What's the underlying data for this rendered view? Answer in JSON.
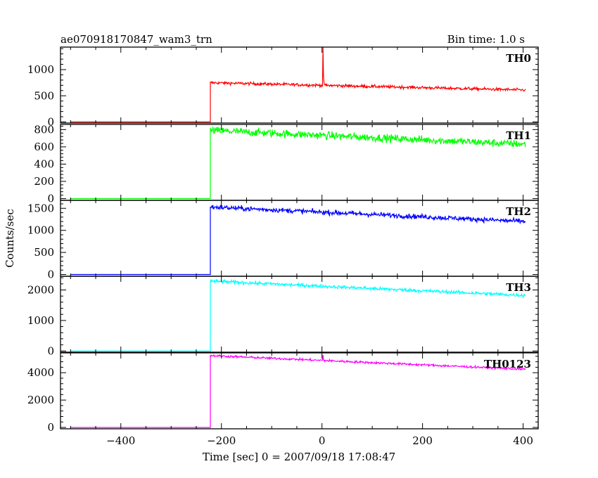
{
  "header": {
    "title": "ae070918170847_wam3_trn",
    "bin_time": "Bin time: 1.0 s"
  },
  "chart_data": {
    "type": "line",
    "xlabel": "Time [sec] 0 = 2007/09/18 17:08:47",
    "ylabel": "Counts/sec",
    "xlim": [
      -520,
      430
    ],
    "xticks": [
      -400,
      -200,
      0,
      200,
      400
    ],
    "x_data_range": [
      -500,
      405
    ],
    "onset": -222,
    "series": [
      {
        "name": "TH0",
        "color": "#ff0000",
        "ylim": [
          -20,
          1430
        ],
        "yticks": [
          0,
          500,
          1000
        ],
        "baseline": 0,
        "level_start": 750,
        "level_end": 610,
        "noise": 28,
        "spike": {
          "x": 2,
          "y": 1430
        }
      },
      {
        "name": "TH1",
        "color": "#00ff00",
        "ylim": [
          -20,
          860
        ],
        "yticks": [
          0,
          200,
          400,
          600,
          800
        ],
        "baseline": 0,
        "level_start": 790,
        "level_end": 630,
        "noise": 45
      },
      {
        "name": "TH2",
        "color": "#0000ff",
        "ylim": [
          -40,
          1680
        ],
        "yticks": [
          0,
          500,
          1000,
          1500
        ],
        "baseline": 0,
        "level_start": 1530,
        "level_end": 1200,
        "noise": 55
      },
      {
        "name": "TH3",
        "color": "#00ffff",
        "ylim": [
          -40,
          2450
        ],
        "yticks": [
          0,
          1000,
          2000
        ],
        "baseline": 0,
        "level_start": 2290,
        "level_end": 1820,
        "noise": 55
      },
      {
        "name": "TH0123",
        "color": "#ff00ff",
        "ylim": [
          -100,
          5450
        ],
        "yticks": [
          0,
          2000,
          4000
        ],
        "baseline": 0,
        "level_start": 5250,
        "level_end": 4250,
        "noise": 80,
        "spike": {
          "x": 2,
          "y": 5300
        }
      }
    ]
  }
}
